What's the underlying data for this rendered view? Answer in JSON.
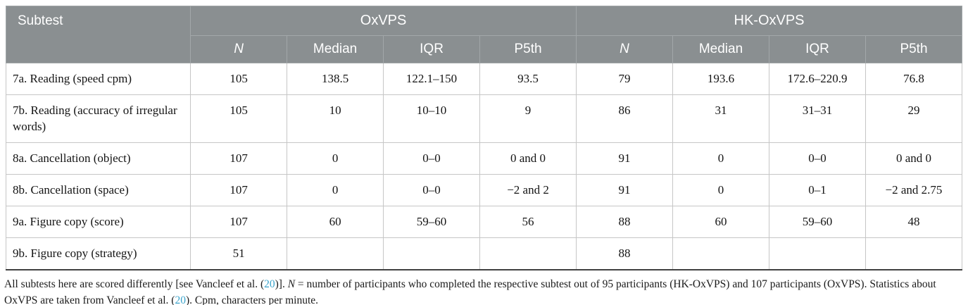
{
  "table": {
    "header": {
      "subtest": "Subtest",
      "group1": "OxVPS",
      "group2": "HK-OxVPS",
      "subcolumns": [
        "N",
        "Median",
        "IQR",
        "P5th"
      ]
    },
    "rows": [
      {
        "subtest": "7a. Reading (speed cpm)",
        "values": [
          "105",
          "138.5",
          "122.1–150",
          "93.5",
          "79",
          "193.6",
          "172.6–220.9",
          "76.8"
        ]
      },
      {
        "subtest": "7b. Reading (accuracy of irregular words)",
        "values": [
          "105",
          "10",
          "10–10",
          "9",
          "86",
          "31",
          "31–31",
          "29"
        ]
      },
      {
        "subtest": "8a. Cancellation (object)",
        "values": [
          "107",
          "0",
          "0–0",
          "0 and 0",
          "91",
          "0",
          "0–0",
          "0 and 0"
        ]
      },
      {
        "subtest": "8b. Cancellation (space)",
        "values": [
          "107",
          "0",
          "0–0",
          "−2 and 2",
          "91",
          "0",
          "0–1",
          "−2 and 2.75"
        ]
      },
      {
        "subtest": "9a. Figure copy (score)",
        "values": [
          "107",
          "60",
          "59–60",
          "56",
          "88",
          "60",
          "59–60",
          "48"
        ]
      },
      {
        "subtest": "9b. Figure copy (strategy)",
        "values": [
          "51",
          "",
          "",
          "",
          "88",
          "",
          "",
          ""
        ]
      }
    ]
  },
  "footnote": {
    "seg1": "All subtests here are scored differently [see Vancleef et al. (",
    "link1": "20",
    "seg2": ")]. ",
    "n_symbol": "N",
    "seg3": " = number of participants who completed the respective subtest out of 95 participants (HK-OxVPS) and 107 participants (OxVPS). Statistics about OxVPS are taken from Vancleef et al. (",
    "link2": "20",
    "seg4": "). Cpm, characters per minute."
  },
  "colors": {
    "header_bg": "#8a8f91",
    "header_text": "#ffffff",
    "link": "#3aa3cb"
  }
}
